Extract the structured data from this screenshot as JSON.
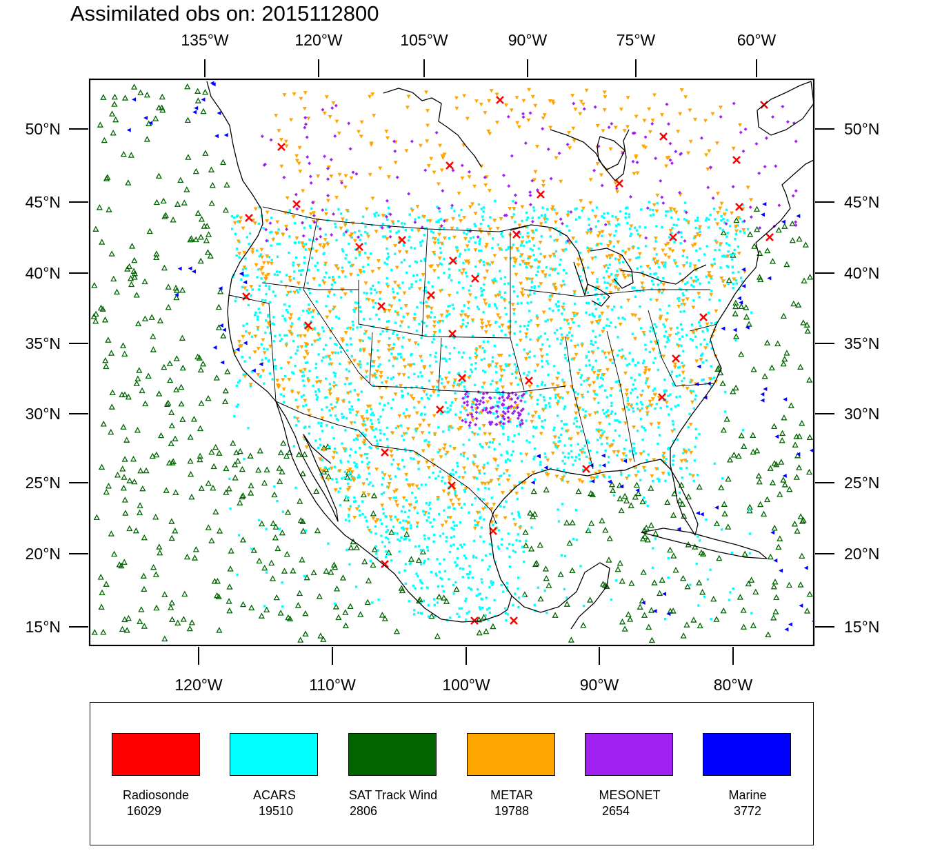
{
  "title": "Assimilated obs on: 2015112800",
  "colors": {
    "background": "#ffffff",
    "frame": "#000000",
    "coastline": "#000000"
  },
  "map": {
    "domain_lon_range": [
      -128,
      -74
    ],
    "domain_lat_range": [
      14,
      54
    ],
    "top_ticks": [
      "135°W",
      "120°W",
      "105°W",
      "90°W",
      "75°W",
      "60°W"
    ],
    "bottom_ticks": [
      "120°W",
      "110°W",
      "100°W",
      "90°W",
      "80°W"
    ],
    "left_ticks": [
      "50°N",
      "45°N",
      "40°N",
      "35°N",
      "30°N",
      "25°N",
      "20°N",
      "15°N"
    ],
    "right_ticks": [
      "50°N",
      "45°N",
      "40°N",
      "35°N",
      "30°N",
      "25°N",
      "20°N",
      "15°N"
    ]
  },
  "legend": {
    "items": [
      {
        "label": "Radiosonde",
        "count": "16029",
        "color": "#ff0000",
        "marker": "x-icon"
      },
      {
        "label": "ACARS",
        "count": "19510",
        "color": "#00ffff",
        "marker": "square-dot-icon"
      },
      {
        "label": "SAT Track Wind",
        "count": "2806",
        "color": "#006400",
        "marker": "triangle-up-icon"
      },
      {
        "label": "METAR",
        "count": "19788",
        "color": "#ffa500",
        "marker": "triangle-down-icon"
      },
      {
        "label": "MESONET",
        "count": "2654",
        "color": "#a020f0",
        "marker": "diamond-icon"
      },
      {
        "label": "Marine",
        "count": "3772",
        "color": "#0000ff",
        "marker": "triangle-left-icon"
      }
    ]
  }
}
